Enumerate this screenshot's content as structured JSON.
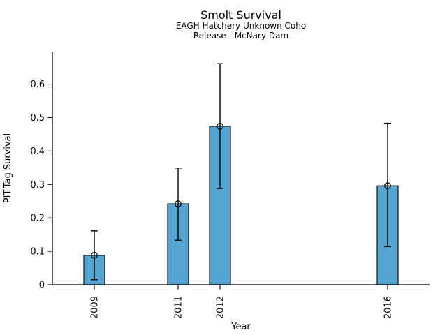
{
  "chart_data": {
    "type": "bar",
    "title": "Smolt Survival",
    "subtitle": [
      "EAGH Hatchery Unknown Coho",
      "Release - McNary Dam"
    ],
    "xlabel": "Year",
    "ylabel": "PIT-Tag Survival",
    "categories": [
      2009,
      2011,
      2012,
      2016
    ],
    "values": [
      0.088,
      0.242,
      0.474,
      0.296
    ],
    "error_low": [
      0.015,
      0.133,
      0.288,
      0.114
    ],
    "error_high": [
      0.161,
      0.349,
      0.661,
      0.483
    ],
    "marker": "open-circle",
    "xlim": [
      2008,
      2017
    ],
    "ylim": [
      0,
      0.695
    ],
    "xticks": [
      2009,
      2011,
      2012,
      2016
    ],
    "xtick_labels": [
      "2009",
      "2011",
      "2012",
      "2016"
    ],
    "xtick_rotation": 90,
    "yticks": [
      0,
      0.1,
      0.2,
      0.3,
      0.4,
      0.5,
      0.6
    ],
    "ytick_labels": [
      "0",
      "0.1",
      "0.2",
      "0.3",
      "0.4",
      "0.5",
      "0.6"
    ],
    "bar_width_years": 0.5,
    "grid": false,
    "legend": "none",
    "colors": {
      "bar_fill": "#55a3cf",
      "bar_edge": "#000000",
      "error": "#000000",
      "axis": "#000000",
      "background": "#ffffff"
    }
  }
}
